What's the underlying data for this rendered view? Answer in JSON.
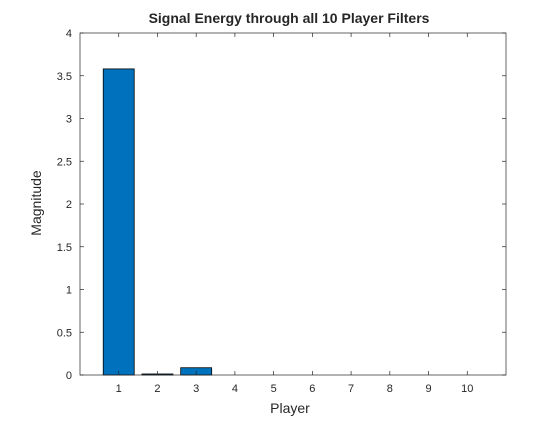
{
  "chart_data": {
    "type": "bar",
    "title": "Signal Energy through all 10 Player Filters",
    "xlabel": "Player",
    "ylabel": "Magnitude",
    "categories": [
      "1",
      "2",
      "3",
      "4",
      "5",
      "6",
      "7",
      "8",
      "9",
      "10"
    ],
    "values": [
      3.58,
      0.012,
      0.085,
      0,
      0,
      0,
      0,
      0,
      0,
      0
    ],
    "xlim": [
      0,
      11
    ],
    "ylim": [
      0,
      4
    ],
    "yticks": [
      0,
      0.5,
      1,
      1.5,
      2,
      2.5,
      3,
      3.5,
      4
    ],
    "ytick_labels": [
      "0",
      "0.5",
      "1",
      "1.5",
      "2",
      "2.5",
      "3",
      "3.5",
      "4"
    ],
    "bar_color": "#0072BD",
    "bar_edge_color": "#000000",
    "grid": false
  }
}
